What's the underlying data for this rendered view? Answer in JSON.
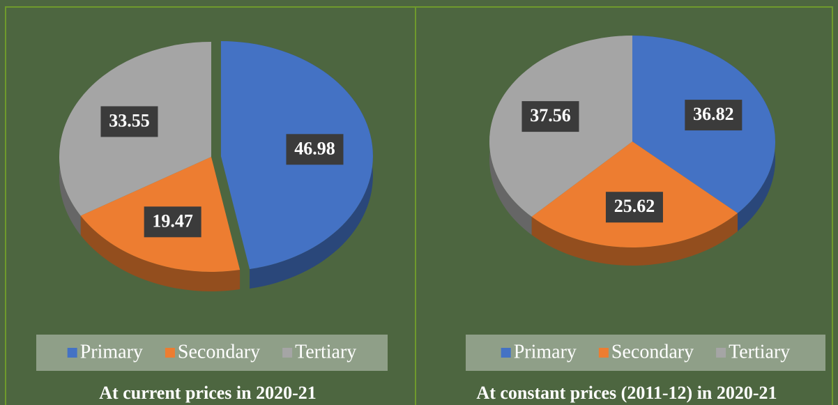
{
  "chart_data": [
    {
      "type": "pie",
      "title": "At current prices in 2020-21",
      "categories": [
        "Primary",
        "Secondary",
        "Tertiary"
      ],
      "values": [
        46.98,
        19.47,
        33.55
      ],
      "colors": [
        "#4472c4",
        "#ed7d31",
        "#a5a5a5"
      ],
      "legend": "bottom"
    },
    {
      "type": "pie",
      "title": "At constant prices (2011-12) in 2020-21",
      "categories": [
        "Primary",
        "Secondary",
        "Tertiary"
      ],
      "values": [
        36.82,
        25.62,
        37.56
      ],
      "colors": [
        "#4472c4",
        "#ed7d31",
        "#a5a5a5"
      ],
      "legend": "bottom"
    }
  ]
}
